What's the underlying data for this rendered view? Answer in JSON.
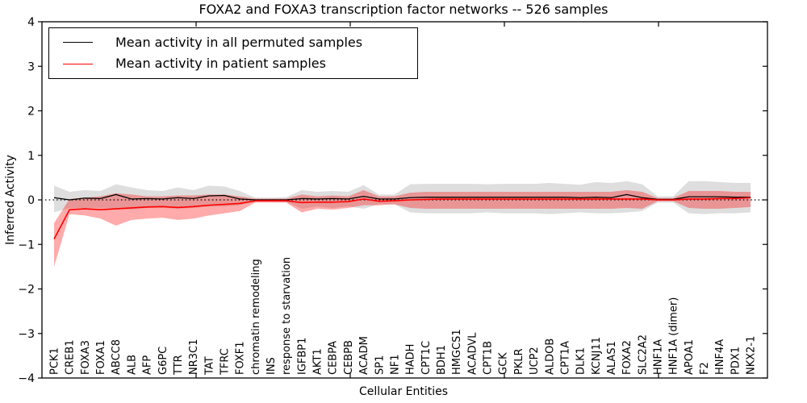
{
  "title": "FOXA2 and FOXA3 transcription factor networks -- 526 samples",
  "legend": {
    "items": [
      {
        "label": "Mean activity in all permuted samples",
        "color": "#000000"
      },
      {
        "label": "Mean activity in patient samples",
        "color": "#ff0000"
      }
    ]
  },
  "chart_data": {
    "type": "line",
    "title": "FOXA2 and FOXA3 transcription factor networks -- 526 samples",
    "xlabel": "Cellular Entities",
    "ylabel": "Inferred Activity",
    "ylim": [
      -4,
      4
    ],
    "yticks": [
      -4,
      -3,
      -2,
      -1,
      0,
      1,
      2,
      3,
      4
    ],
    "grid": false,
    "legend_position": "upper left",
    "zero_line": {
      "y": 0,
      "style": "dotted",
      "color": "#000000"
    },
    "categories": [
      "PCK1",
      "CREB1",
      "FOXA3",
      "FOXA1",
      "ABCC8",
      "ALB",
      "AFP",
      "G6PC",
      "TTR",
      "NR3C1",
      "TAT",
      "TFRC",
      "FOXF1",
      "chromatin remodeling",
      "INS",
      "response to starvation",
      "IGFBP1",
      "AKT1",
      "CEBPA",
      "CEBPB",
      "ACADM",
      "SP1",
      "NF1",
      "HADH",
      "CPT1C",
      "BDH1",
      "HMGCS1",
      "ACADVL",
      "CPT1B",
      "GCK",
      "PKLR",
      "UCP2",
      "ALDOB",
      "CPT1A",
      "DLK1",
      "KCNJ11",
      "ALAS1",
      "FOXA2",
      "SLC2A2",
      "HNF1A",
      "HNF1A (dimer)",
      "APOA1",
      "F2",
      "HNF4A",
      "PDX1",
      "NKX2-1"
    ],
    "series": [
      {
        "name": "Mean activity in all permuted samples",
        "color": "#000000",
        "band_color": "rgba(0,0,0,0.13)",
        "values": [
          0.05,
          0.0,
          0.04,
          0.03,
          0.12,
          0.02,
          0.03,
          0.02,
          0.05,
          0.03,
          0.09,
          0.1,
          0.02,
          0.0,
          0.0,
          0.0,
          0.03,
          0.02,
          0.03,
          0.02,
          0.08,
          0.02,
          0.02,
          0.05,
          0.06,
          0.06,
          0.06,
          0.06,
          0.06,
          0.06,
          0.06,
          0.06,
          0.06,
          0.06,
          0.05,
          0.06,
          0.05,
          0.12,
          0.05,
          0.01,
          0.01,
          0.07,
          0.07,
          0.07,
          0.06,
          0.06
        ],
        "band_lower": [
          -0.28,
          -0.18,
          -0.18,
          -0.18,
          -0.2,
          -0.22,
          -0.18,
          -0.18,
          -0.2,
          -0.18,
          -0.15,
          -0.15,
          -0.12,
          -0.04,
          -0.04,
          -0.05,
          -0.2,
          -0.15,
          -0.18,
          -0.15,
          -0.2,
          -0.1,
          -0.1,
          -0.28,
          -0.3,
          -0.3,
          -0.3,
          -0.3,
          -0.28,
          -0.3,
          -0.3,
          -0.3,
          -0.32,
          -0.3,
          -0.28,
          -0.3,
          -0.3,
          -0.28,
          -0.25,
          -0.06,
          -0.06,
          -0.3,
          -0.32,
          -0.3,
          -0.3,
          -0.28
        ],
        "band_upper": [
          0.32,
          0.18,
          0.22,
          0.2,
          0.35,
          0.28,
          0.22,
          0.2,
          0.28,
          0.22,
          0.32,
          0.3,
          0.2,
          0.05,
          0.05,
          0.06,
          0.22,
          0.18,
          0.2,
          0.18,
          0.33,
          0.12,
          0.12,
          0.35,
          0.36,
          0.36,
          0.36,
          0.36,
          0.35,
          0.36,
          0.36,
          0.36,
          0.38,
          0.36,
          0.34,
          0.4,
          0.38,
          0.42,
          0.35,
          0.08,
          0.08,
          0.42,
          0.42,
          0.4,
          0.38,
          0.38
        ]
      },
      {
        "name": "Mean activity in patient samples",
        "color": "#ff0000",
        "band_color": "rgba(255,0,0,0.33)",
        "values": [
          -0.88,
          -0.22,
          -0.2,
          -0.22,
          -0.2,
          -0.18,
          -0.16,
          -0.15,
          -0.17,
          -0.15,
          -0.12,
          -0.1,
          -0.08,
          -0.02,
          -0.02,
          -0.02,
          -0.06,
          -0.05,
          -0.05,
          -0.04,
          0.02,
          -0.03,
          -0.02,
          0.0,
          0.01,
          0.02,
          0.02,
          0.02,
          0.02,
          0.02,
          0.02,
          0.02,
          0.02,
          0.02,
          0.02,
          0.02,
          0.02,
          0.02,
          0.02,
          0.0,
          0.0,
          0.02,
          0.02,
          0.03,
          0.03,
          0.05
        ],
        "band_lower": [
          -1.5,
          -0.32,
          -0.35,
          -0.42,
          -0.58,
          -0.45,
          -0.42,
          -0.4,
          -0.45,
          -0.42,
          -0.35,
          -0.3,
          -0.25,
          -0.06,
          -0.06,
          -0.06,
          -0.28,
          -0.2,
          -0.22,
          -0.18,
          -0.12,
          -0.12,
          -0.1,
          -0.18,
          -0.2,
          -0.2,
          -0.2,
          -0.2,
          -0.2,
          -0.2,
          -0.2,
          -0.2,
          -0.2,
          -0.2,
          -0.2,
          -0.2,
          -0.2,
          -0.18,
          -0.2,
          -0.03,
          -0.03,
          -0.18,
          -0.2,
          -0.2,
          -0.18,
          -0.16
        ],
        "band_upper": [
          -0.52,
          0.02,
          0.05,
          0.08,
          0.15,
          0.12,
          0.08,
          0.08,
          0.1,
          0.1,
          0.12,
          0.12,
          0.08,
          0.03,
          0.03,
          0.03,
          0.12,
          0.08,
          0.1,
          0.08,
          0.22,
          0.08,
          0.08,
          0.16,
          0.18,
          0.18,
          0.18,
          0.18,
          0.18,
          0.18,
          0.18,
          0.18,
          0.18,
          0.18,
          0.18,
          0.18,
          0.18,
          0.22,
          0.18,
          0.04,
          0.04,
          0.2,
          0.2,
          0.2,
          0.18,
          0.18
        ]
      }
    ]
  }
}
